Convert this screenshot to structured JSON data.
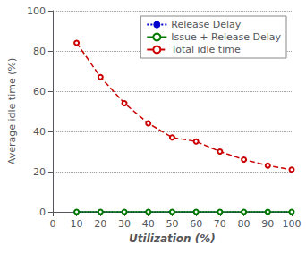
{
  "chart_data": {
    "type": "line",
    "x": [
      10,
      20,
      30,
      40,
      50,
      60,
      70,
      80,
      90,
      100
    ],
    "series": [
      {
        "name": "Release Delay",
        "color": "#0000cc",
        "line_style": "dotted",
        "marker": "circle",
        "values": [
          0,
          0,
          0,
          0,
          0,
          0,
          0,
          0,
          0,
          0
        ]
      },
      {
        "name": "Issue + Release Delay",
        "color": "#007700",
        "line_style": "solid",
        "marker": "open circle",
        "values": [
          0,
          0,
          0,
          0,
          0,
          0,
          0,
          0,
          0,
          0
        ]
      },
      {
        "name": "Total idle time",
        "color": "#cc0000",
        "line_style": "dashed",
        "marker": "open circle",
        "values": [
          84,
          67,
          54,
          44,
          37,
          35,
          30,
          26,
          23,
          21
        ]
      }
    ],
    "x_label": "Utilization (%)",
    "y_label": "Average idle time (%)",
    "xlim": [
      0,
      100
    ],
    "ylim": [
      0,
      100
    ],
    "xticks": [
      0,
      10,
      20,
      30,
      40,
      50,
      60,
      70,
      80,
      90,
      100
    ],
    "yticks": [
      0,
      20,
      40,
      60,
      80,
      100
    ],
    "grid": true,
    "legend": "upper right"
  }
}
